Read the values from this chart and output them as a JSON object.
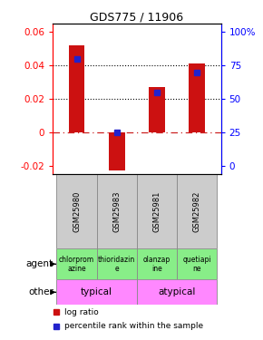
{
  "title": "GDS775 / 11906",
  "samples": [
    "GSM25980",
    "GSM25983",
    "GSM25981",
    "GSM25982"
  ],
  "log_ratio": [
    0.052,
    -0.023,
    0.027,
    0.041
  ],
  "percentile_rank_pct": [
    80,
    25,
    55,
    70
  ],
  "ylim_left": [
    -0.025,
    0.065
  ],
  "yticks_left": [
    -0.02,
    0,
    0.02,
    0.04,
    0.06
  ],
  "yticks_right": [
    0,
    25,
    50,
    75,
    100
  ],
  "ytick_right_labels": [
    "0",
    "25",
    "50",
    "75",
    "100%"
  ],
  "bar_color": "#cc1111",
  "dot_color": "#2222cc",
  "agent_labels": [
    "chlorprom\nazine",
    "thioridazin\ne",
    "olanzap\nine",
    "quetiapi\nne"
  ],
  "agent_color": "#88ee88",
  "other_color": "#ff88ff",
  "legend_items": [
    "log ratio",
    "percentile rank within the sample"
  ],
  "bar_width": 0.4
}
